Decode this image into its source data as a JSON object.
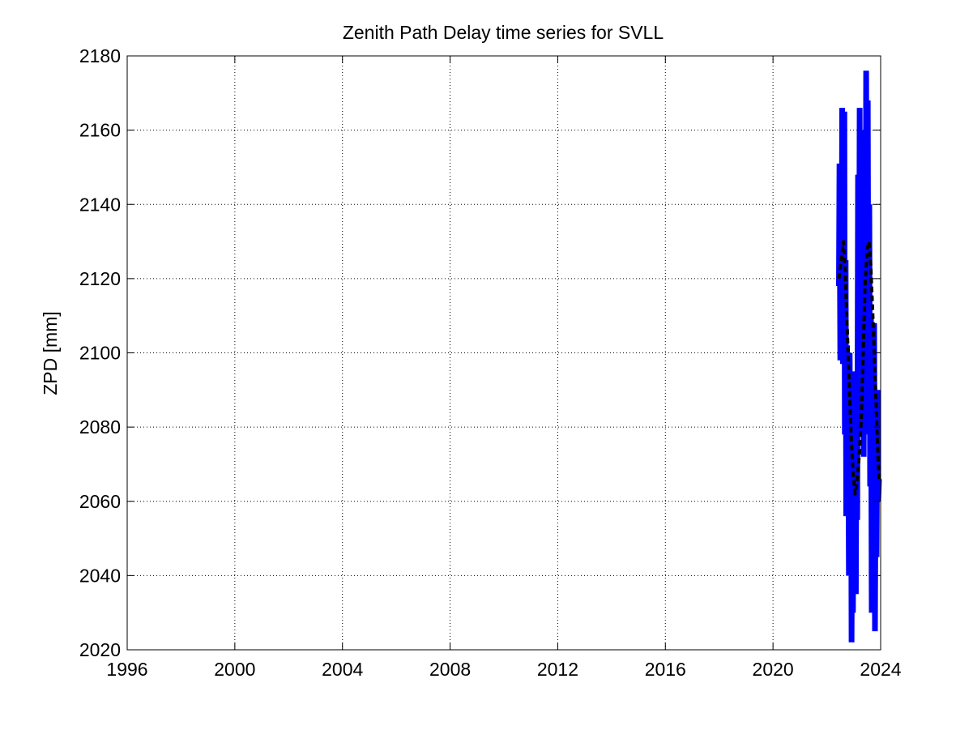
{
  "chart_data": {
    "type": "line",
    "title": "Zenith Path Delay time series for SVLL",
    "xlabel": "",
    "ylabel": "ZPD [mm]",
    "xlim": [
      1996,
      2024
    ],
    "ylim": [
      2020,
      2180
    ],
    "xticks": [
      1996,
      2000,
      2004,
      2008,
      2012,
      2016,
      2020,
      2024
    ],
    "yticks": [
      2020,
      2040,
      2060,
      2080,
      2100,
      2120,
      2140,
      2160,
      2180
    ],
    "grid": true,
    "legend": "none",
    "colors": {
      "series": "#0000ff",
      "trend": "#000000",
      "grid": "#000000",
      "axes": "#000000"
    },
    "series": [
      {
        "style": "solid-blue-thick",
        "x": [
          2022.45,
          2022.47,
          2022.5,
          2022.52,
          2022.55,
          2022.57,
          2022.6,
          2022.62,
          2022.65,
          2022.67,
          2022.7,
          2022.72,
          2022.75,
          2022.77,
          2022.8,
          2022.82,
          2022.85,
          2022.87,
          2022.9,
          2022.92,
          2022.95,
          2022.97,
          2023.0,
          2023.02,
          2023.05,
          2023.08,
          2023.1,
          2023.13,
          2023.16,
          2023.19,
          2023.22,
          2023.25,
          2023.28,
          2023.31,
          2023.34,
          2023.37,
          2023.4,
          2023.43,
          2023.46,
          2023.49,
          2023.52,
          2023.55,
          2023.58,
          2023.61,
          2023.64,
          2023.67,
          2023.7,
          2023.73,
          2023.76,
          2023.79,
          2023.82,
          2023.85,
          2023.88,
          2023.91,
          2023.94
        ],
        "y": [
          2118,
          2151,
          2098,
          2140,
          2112,
          2166,
          2097,
          2152,
          2165,
          2078,
          2125,
          2056,
          2102,
          2066,
          2080,
          2040,
          2100,
          2060,
          2078,
          2022,
          2072,
          2030,
          2066,
          2042,
          2095,
          2035,
          2080,
          2055,
          2148,
          2080,
          2166,
          2100,
          2140,
          2078,
          2160,
          2072,
          2155,
          2080,
          2176,
          2100,
          2168,
          2078,
          2140,
          2064,
          2110,
          2030,
          2096,
          2040,
          2108,
          2025,
          2080,
          2045,
          2090,
          2060,
          2066
        ]
      },
      {
        "style": "dashed-black",
        "x": [
          2022.45,
          2022.55,
          2022.62,
          2022.68,
          2022.75,
          2022.82,
          2022.9,
          2022.97,
          2023.05,
          2023.12,
          2023.2,
          2023.28,
          2023.35,
          2023.42,
          2023.5,
          2023.57,
          2023.63,
          2023.7,
          2023.77,
          2023.84,
          2023.9,
          2023.94
        ],
        "y": [
          2120,
          2126,
          2130,
          2122,
          2108,
          2094,
          2078,
          2068,
          2062,
          2065,
          2072,
          2082,
          2100,
          2118,
          2128,
          2130,
          2124,
          2112,
          2098,
          2084,
          2072,
          2066
        ]
      }
    ]
  }
}
